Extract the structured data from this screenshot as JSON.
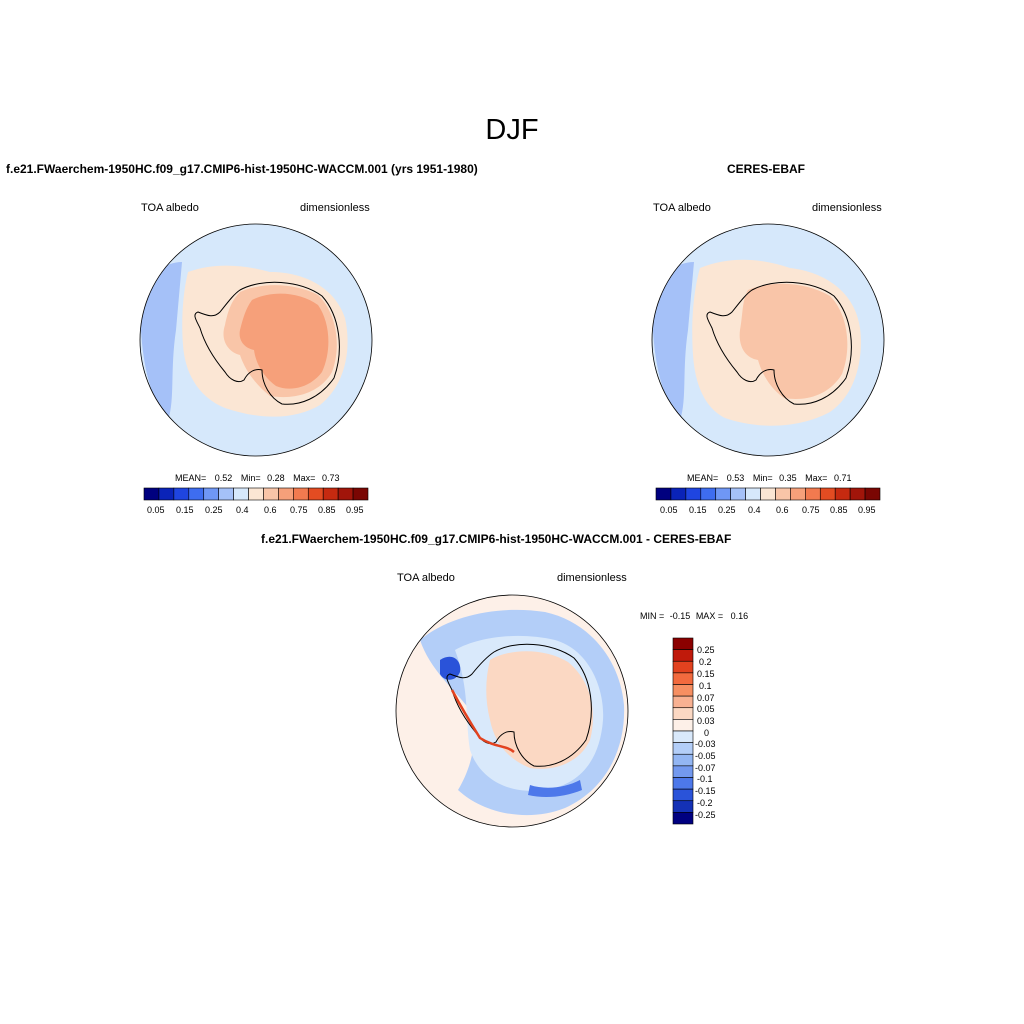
{
  "season_title": "DJF",
  "panels": [
    {
      "title": "f.e21.FWaerchem-1950HC.f09_g17.CMIP6-hist-1950HC-WACCM.001 (yrs 1951-1980)",
      "variable": "TOA albedo",
      "units": "dimensionless",
      "stats": {
        "mean_label": "MEAN=",
        "mean": "0.52",
        "min_label": "Min=",
        "min": "0.28",
        "max_label": "Max=",
        "max": "0.73"
      },
      "colorbar_labels": [
        "0.05",
        "0.15",
        "0.25",
        "0.4",
        "0.6",
        "0.75",
        "0.85",
        "0.95"
      ]
    },
    {
      "title": "CERES-EBAF",
      "variable": "TOA albedo",
      "units": "dimensionless",
      "stats": {
        "mean_label": "MEAN=",
        "mean": "0.53",
        "min_label": "Min=",
        "min": "0.35",
        "max_label": "Max=",
        "max": "0.71"
      },
      "colorbar_labels": [
        "0.05",
        "0.15",
        "0.25",
        "0.4",
        "0.6",
        "0.75",
        "0.85",
        "0.95"
      ]
    },
    {
      "title": "f.e21.FWaerchem-1950HC.f09_g17.CMIP6-hist-1950HC-WACCM.001 - CERES-EBAF",
      "variable": "TOA albedo",
      "units": "dimensionless",
      "stats": {
        "min_label": "MIN =",
        "min": "-0.15",
        "max_label": "MAX =",
        "max": "0.16"
      },
      "colorbar_labels": [
        "0.25",
        "0.2",
        "0.15",
        "0.1",
        "0.07",
        "0.05",
        "0.03",
        "0",
        "-0.03",
        "-0.05",
        "-0.07",
        "-0.1",
        "-0.15",
        "-0.2",
        "-0.25"
      ]
    }
  ],
  "colors": {
    "abs_scale": [
      "#00007f",
      "#0a23b8",
      "#1f45e0",
      "#3e6df0",
      "#6f97f5",
      "#a5c1f8",
      "#d6e8fb",
      "#fbe6d4",
      "#f9c5a8",
      "#f6a07a",
      "#f27a4f",
      "#e34c22",
      "#c62a10",
      "#a1150a",
      "#7a0603"
    ],
    "diff_scale": [
      "#8b0000",
      "#c01a0b",
      "#e2421f",
      "#f26a3e",
      "#f68f62",
      "#f8b192",
      "#fbd8c3",
      "#fdf0e8",
      "#d9e9fb",
      "#b3cef8",
      "#93b6f3",
      "#7399ef",
      "#4d78ea",
      "#2a53d9",
      "#1431b6",
      "#000080"
    ],
    "ocean": "#d6e8fb",
    "ice": "#f6a07a"
  }
}
